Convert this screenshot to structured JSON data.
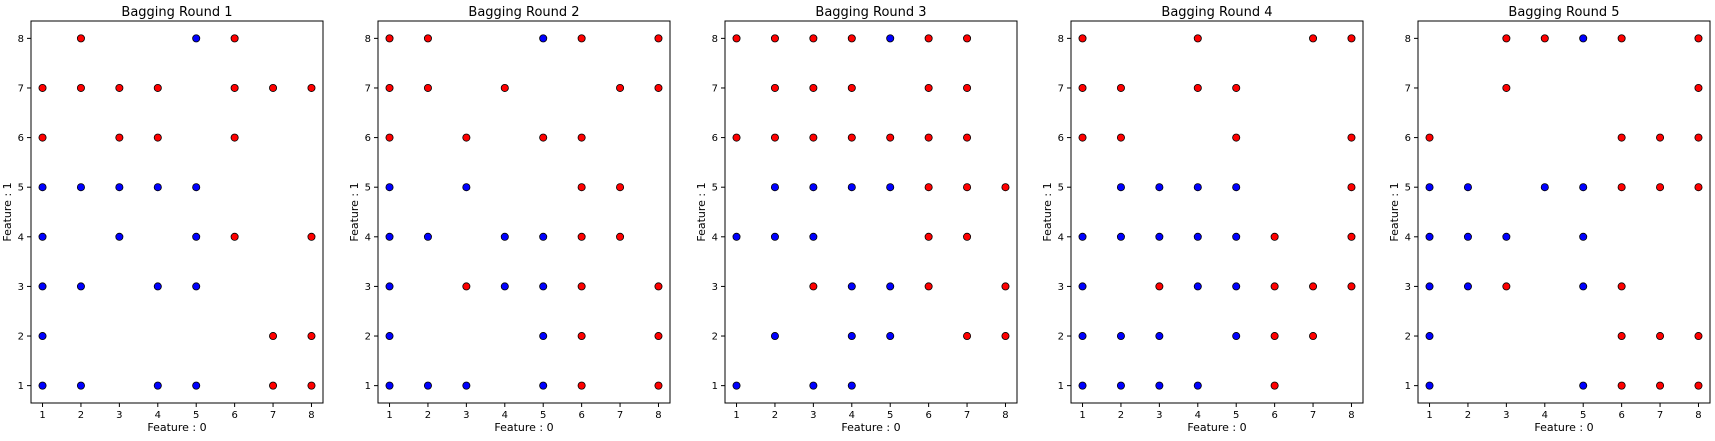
{
  "colors": {
    "red": "#ff0000",
    "blue": "#0000ff",
    "edge": "#000000"
  },
  "chart_data": [
    {
      "type": "scatter",
      "title": "Bagging Round 1",
      "xlabel": "Feature : 0",
      "ylabel": "Feature : 1",
      "xlim": [
        0.7,
        8.3
      ],
      "ylim": [
        0.65,
        8.35
      ],
      "xticks": [
        1,
        2,
        3,
        4,
        5,
        6,
        7,
        8
      ],
      "yticks": [
        1,
        2,
        3,
        4,
        5,
        6,
        7,
        8
      ],
      "points": {
        "red": [
          [
            2,
            8
          ],
          [
            6,
            8
          ],
          [
            1,
            7
          ],
          [
            2,
            7
          ],
          [
            3,
            7
          ],
          [
            4,
            7
          ],
          [
            6,
            7
          ],
          [
            7,
            7
          ],
          [
            8,
            7
          ],
          [
            1,
            6
          ],
          [
            3,
            6
          ],
          [
            4,
            6
          ],
          [
            6,
            6
          ],
          [
            6,
            4
          ],
          [
            8,
            4
          ],
          [
            7,
            2
          ],
          [
            8,
            2
          ],
          [
            7,
            1
          ],
          [
            8,
            1
          ]
        ],
        "blue": [
          [
            5,
            8
          ],
          [
            1,
            5
          ],
          [
            2,
            5
          ],
          [
            3,
            5
          ],
          [
            4,
            5
          ],
          [
            5,
            5
          ],
          [
            1,
            4
          ],
          [
            3,
            4
          ],
          [
            5,
            4
          ],
          [
            1,
            3
          ],
          [
            2,
            3
          ],
          [
            4,
            3
          ],
          [
            5,
            3
          ],
          [
            1,
            2
          ],
          [
            1,
            1
          ],
          [
            2,
            1
          ],
          [
            4,
            1
          ],
          [
            5,
            1
          ]
        ]
      }
    },
    {
      "type": "scatter",
      "title": "Bagging Round 2",
      "xlabel": "Feature : 0",
      "ylabel": "Feature : 1",
      "xlim": [
        0.7,
        8.3
      ],
      "ylim": [
        0.65,
        8.35
      ],
      "xticks": [
        1,
        2,
        3,
        4,
        5,
        6,
        7,
        8
      ],
      "yticks": [
        1,
        2,
        3,
        4,
        5,
        6,
        7,
        8
      ],
      "points": {
        "red": [
          [
            1,
            8
          ],
          [
            2,
            8
          ],
          [
            6,
            8
          ],
          [
            8,
            8
          ],
          [
            1,
            7
          ],
          [
            2,
            7
          ],
          [
            4,
            7
          ],
          [
            7,
            7
          ],
          [
            8,
            7
          ],
          [
            1,
            6
          ],
          [
            3,
            6
          ],
          [
            5,
            6
          ],
          [
            6,
            6
          ],
          [
            6,
            5
          ],
          [
            7,
            5
          ],
          [
            6,
            4
          ],
          [
            7,
            4
          ],
          [
            3,
            3
          ],
          [
            6,
            3
          ],
          [
            8,
            3
          ],
          [
            6,
            2
          ],
          [
            8,
            2
          ],
          [
            6,
            1
          ],
          [
            8,
            1
          ]
        ],
        "blue": [
          [
            5,
            8
          ],
          [
            1,
            5
          ],
          [
            3,
            5
          ],
          [
            1,
            4
          ],
          [
            2,
            4
          ],
          [
            4,
            4
          ],
          [
            5,
            4
          ],
          [
            1,
            3
          ],
          [
            4,
            3
          ],
          [
            5,
            3
          ],
          [
            1,
            2
          ],
          [
            5,
            2
          ],
          [
            1,
            1
          ],
          [
            2,
            1
          ],
          [
            3,
            1
          ],
          [
            5,
            1
          ]
        ]
      }
    },
    {
      "type": "scatter",
      "title": "Bagging Round 3",
      "xlabel": "Feature : 0",
      "ylabel": "Feature : 1",
      "xlim": [
        0.7,
        8.3
      ],
      "ylim": [
        0.65,
        8.35
      ],
      "xticks": [
        1,
        2,
        3,
        4,
        5,
        6,
        7,
        8
      ],
      "yticks": [
        1,
        2,
        3,
        4,
        5,
        6,
        7,
        8
      ],
      "points": {
        "red": [
          [
            1,
            8
          ],
          [
            2,
            8
          ],
          [
            3,
            8
          ],
          [
            4,
            8
          ],
          [
            6,
            8
          ],
          [
            7,
            8
          ],
          [
            2,
            7
          ],
          [
            3,
            7
          ],
          [
            4,
            7
          ],
          [
            6,
            7
          ],
          [
            7,
            7
          ],
          [
            1,
            6
          ],
          [
            2,
            6
          ],
          [
            3,
            6
          ],
          [
            4,
            6
          ],
          [
            5,
            6
          ],
          [
            6,
            6
          ],
          [
            7,
            6
          ],
          [
            6,
            5
          ],
          [
            7,
            5
          ],
          [
            8,
            5
          ],
          [
            6,
            4
          ],
          [
            7,
            4
          ],
          [
            3,
            3
          ],
          [
            6,
            3
          ],
          [
            8,
            3
          ],
          [
            7,
            2
          ],
          [
            8,
            2
          ]
        ],
        "blue": [
          [
            5,
            8
          ],
          [
            2,
            5
          ],
          [
            3,
            5
          ],
          [
            4,
            5
          ],
          [
            5,
            5
          ],
          [
            1,
            4
          ],
          [
            2,
            4
          ],
          [
            3,
            4
          ],
          [
            4,
            3
          ],
          [
            5,
            3
          ],
          [
            2,
            2
          ],
          [
            4,
            2
          ],
          [
            5,
            2
          ],
          [
            1,
            1
          ],
          [
            3,
            1
          ],
          [
            4,
            1
          ]
        ]
      }
    },
    {
      "type": "scatter",
      "title": "Bagging Round 4",
      "xlabel": "Feature : 0",
      "ylabel": "Feature : 1",
      "xlim": [
        0.7,
        8.3
      ],
      "ylim": [
        0.65,
        8.35
      ],
      "xticks": [
        1,
        2,
        3,
        4,
        5,
        6,
        7,
        8
      ],
      "yticks": [
        1,
        2,
        3,
        4,
        5,
        6,
        7,
        8
      ],
      "points": {
        "red": [
          [
            1,
            8
          ],
          [
            4,
            8
          ],
          [
            7,
            8
          ],
          [
            8,
            8
          ],
          [
            1,
            7
          ],
          [
            2,
            7
          ],
          [
            4,
            7
          ],
          [
            5,
            7
          ],
          [
            1,
            6
          ],
          [
            2,
            6
          ],
          [
            5,
            6
          ],
          [
            8,
            6
          ],
          [
            8,
            5
          ],
          [
            6,
            4
          ],
          [
            8,
            4
          ],
          [
            3,
            3
          ],
          [
            6,
            3
          ],
          [
            7,
            3
          ],
          [
            8,
            3
          ],
          [
            6,
            2
          ],
          [
            7,
            2
          ],
          [
            6,
            1
          ]
        ],
        "blue": [
          [
            2,
            5
          ],
          [
            3,
            5
          ],
          [
            4,
            5
          ],
          [
            5,
            5
          ],
          [
            1,
            4
          ],
          [
            2,
            4
          ],
          [
            3,
            4
          ],
          [
            4,
            4
          ],
          [
            5,
            4
          ],
          [
            1,
            3
          ],
          [
            4,
            3
          ],
          [
            5,
            3
          ],
          [
            1,
            2
          ],
          [
            2,
            2
          ],
          [
            3,
            2
          ],
          [
            5,
            2
          ],
          [
            1,
            1
          ],
          [
            2,
            1
          ],
          [
            3,
            1
          ],
          [
            4,
            1
          ]
        ]
      }
    },
    {
      "type": "scatter",
      "title": "Bagging Round 5",
      "xlabel": "Feature : 0",
      "ylabel": "Feature : 1",
      "xlim": [
        0.7,
        8.3
      ],
      "ylim": [
        0.65,
        8.35
      ],
      "xticks": [
        1,
        2,
        3,
        4,
        5,
        6,
        7,
        8
      ],
      "yticks": [
        1,
        2,
        3,
        4,
        5,
        6,
        7,
        8
      ],
      "points": {
        "red": [
          [
            3,
            8
          ],
          [
            4,
            8
          ],
          [
            6,
            8
          ],
          [
            8,
            8
          ],
          [
            3,
            7
          ],
          [
            8,
            7
          ],
          [
            1,
            6
          ],
          [
            6,
            6
          ],
          [
            7,
            6
          ],
          [
            8,
            6
          ],
          [
            6,
            5
          ],
          [
            7,
            5
          ],
          [
            8,
            5
          ],
          [
            3,
            3
          ],
          [
            6,
            3
          ],
          [
            6,
            2
          ],
          [
            7,
            2
          ],
          [
            8,
            2
          ],
          [
            6,
            1
          ],
          [
            7,
            1
          ],
          [
            8,
            1
          ]
        ],
        "blue": [
          [
            5,
            8
          ],
          [
            1,
            5
          ],
          [
            2,
            5
          ],
          [
            4,
            5
          ],
          [
            5,
            5
          ],
          [
            1,
            4
          ],
          [
            2,
            4
          ],
          [
            3,
            4
          ],
          [
            5,
            4
          ],
          [
            1,
            3
          ],
          [
            2,
            3
          ],
          [
            5,
            3
          ],
          [
            1,
            2
          ],
          [
            1,
            1
          ],
          [
            5,
            1
          ]
        ]
      }
    }
  ]
}
